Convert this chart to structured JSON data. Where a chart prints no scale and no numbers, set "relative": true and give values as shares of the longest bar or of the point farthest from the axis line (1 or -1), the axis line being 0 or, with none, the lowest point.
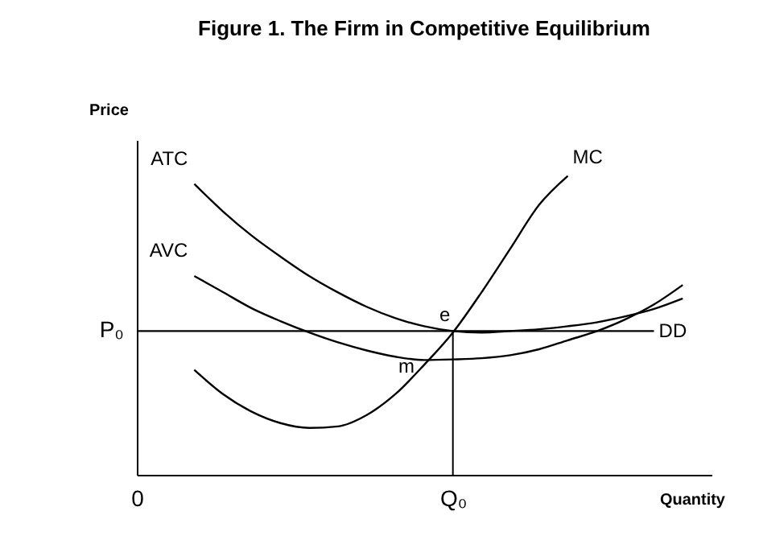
{
  "chart_data": {
    "type": "line",
    "title": "Figure 1. The Firm in Competitive Equilibrium",
    "xlabel": "Quantity",
    "ylabel": "Price",
    "relative": true,
    "categories": [
      "0",
      null,
      null,
      null,
      null,
      null,
      null,
      null,
      null,
      null,
      null,
      "Q₀",
      null,
      null,
      null,
      null,
      null,
      null,
      null,
      null,
      null
    ],
    "series": [
      {
        "name": "ATC",
        "color": "#000000",
        "values": [
          null,
          null,
          0.973,
          0.881,
          0.8,
          0.73,
          0.665,
          0.61,
          0.562,
          0.524,
          0.497,
          0.481,
          0.476,
          0.481,
          0.487,
          0.497,
          0.51,
          0.53,
          0.555,
          0.59,
          null
        ]
      },
      {
        "name": "AVC",
        "color": "#000000",
        "values": [
          null,
          null,
          0.665,
          0.611,
          0.557,
          0.514,
          0.476,
          0.443,
          0.416,
          0.395,
          0.384,
          0.386,
          0.39,
          0.4,
          0.42,
          0.45,
          0.48,
          0.52,
          0.57,
          0.635,
          null
        ]
      },
      {
        "name": "MC",
        "color": "#000000",
        "values": [
          null,
          null,
          0.351,
          0.27,
          0.211,
          0.173,
          0.157,
          0.162,
          0.2,
          0.27,
          0.368,
          0.476,
          0.611,
          0.757,
          0.903,
          1.0,
          null,
          null,
          null,
          null,
          null
        ]
      },
      {
        "name": "DD",
        "color": "#000000",
        "values": [
          0.481,
          0.481,
          0.481,
          0.481,
          0.481,
          0.481,
          0.481,
          0.481,
          0.481,
          0.481,
          0.481,
          0.481,
          0.481,
          0.481,
          0.481,
          0.481,
          0.481,
          0.481,
          0.481,
          null,
          null
        ]
      }
    ],
    "ref_lines": [
      {
        "axis": "x",
        "value": "Q₀"
      }
    ],
    "annotations": [
      "P₀",
      {
        "text": "e",
        "x": "Q₀",
        "y": 0.481
      },
      {
        "text": "m",
        "y": 0.384
      }
    ]
  }
}
